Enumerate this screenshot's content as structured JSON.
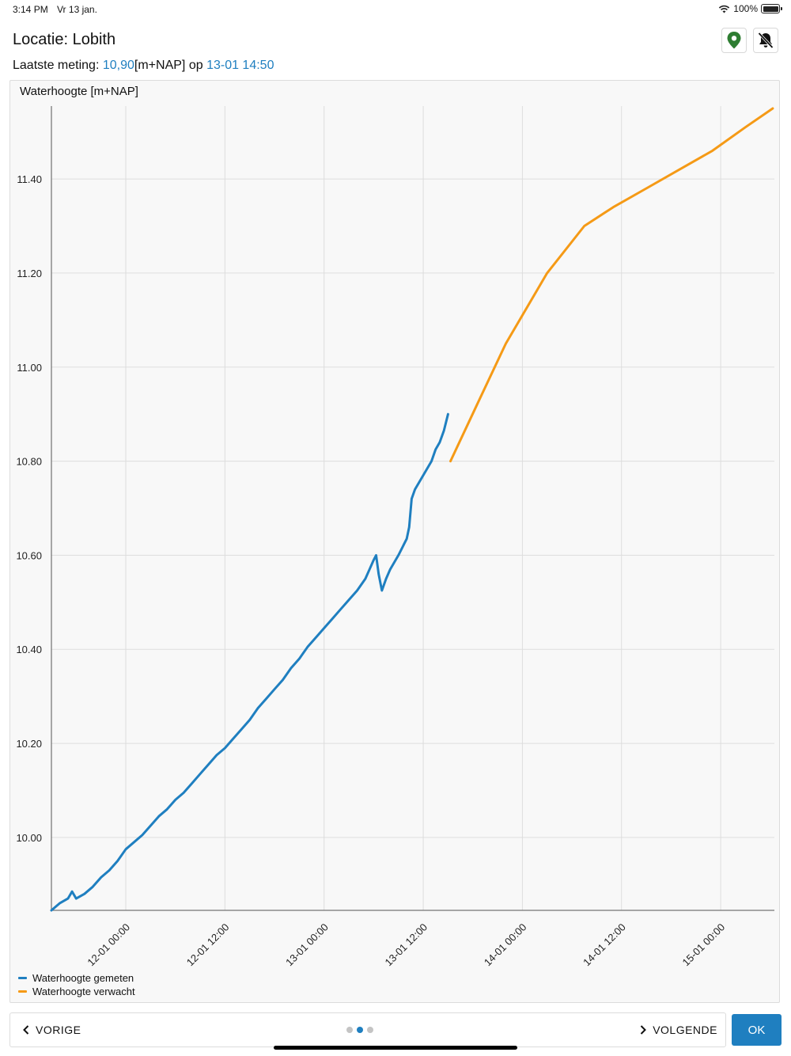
{
  "status_bar": {
    "time": "3:14 PM",
    "date": "Vr 13 jan.",
    "battery": "100%"
  },
  "header": {
    "title": "Locatie: Lobith",
    "last_measurement": {
      "prefix": "Laatste meting:",
      "value": "10,90",
      "unit": "[m+NAP] op",
      "timestamp": "13-01 14:50"
    },
    "location_icon": "map-pin-icon",
    "notification_icon": "bell-off-icon",
    "location_icon_color": "#2e7d32"
  },
  "chart_data": {
    "type": "line",
    "title": "Waterhoogte [m+NAP]",
    "x_unit": "hours since 11-01 21:00",
    "xlim": [
      0,
      87.5
    ],
    "ylim": [
      9.845,
      11.555
    ],
    "yticks": [
      10.0,
      10.2,
      10.4,
      10.6,
      10.8,
      11.0,
      11.2,
      11.4
    ],
    "ytick_labels": [
      "10.00",
      "10.20",
      "10.40",
      "10.60",
      "10.80",
      "11.00",
      "11.20",
      "11.40"
    ],
    "xticks": [
      {
        "x": 9,
        "label": "12-01 00:00"
      },
      {
        "x": 21,
        "label": "12-01 12:00"
      },
      {
        "x": 33,
        "label": "13-01 00:00"
      },
      {
        "x": 45,
        "label": "13-01 12:00"
      },
      {
        "x": 57,
        "label": "14-01 00:00"
      },
      {
        "x": 69,
        "label": "14-01 12:00"
      },
      {
        "x": 81,
        "label": "15-01 00:00"
      }
    ],
    "grid": true,
    "legend_position": "bottom-left",
    "series": [
      {
        "name": "Waterhoogte gemeten",
        "color": "#1f7fc0",
        "points": [
          [
            0,
            9.845
          ],
          [
            1,
            9.86
          ],
          [
            2,
            9.87
          ],
          [
            2.5,
            9.885
          ],
          [
            3,
            9.87
          ],
          [
            4,
            9.88
          ],
          [
            5,
            9.895
          ],
          [
            6,
            9.915
          ],
          [
            7,
            9.93
          ],
          [
            8,
            9.95
          ],
          [
            9,
            9.975
          ],
          [
            10,
            9.99
          ],
          [
            11,
            10.005
          ],
          [
            12,
            10.025
          ],
          [
            13,
            10.045
          ],
          [
            14,
            10.06
          ],
          [
            15,
            10.08
          ],
          [
            16,
            10.095
          ],
          [
            17,
            10.115
          ],
          [
            18,
            10.135
          ],
          [
            19,
            10.155
          ],
          [
            20,
            10.175
          ],
          [
            21,
            10.19
          ],
          [
            22,
            10.21
          ],
          [
            23,
            10.23
          ],
          [
            24,
            10.25
          ],
          [
            25,
            10.275
          ],
          [
            26,
            10.295
          ],
          [
            27,
            10.315
          ],
          [
            28,
            10.335
          ],
          [
            29,
            10.36
          ],
          [
            30,
            10.38
          ],
          [
            31,
            10.405
          ],
          [
            32,
            10.425
          ],
          [
            33,
            10.445
          ],
          [
            34,
            10.465
          ],
          [
            35,
            10.485
          ],
          [
            36,
            10.505
          ],
          [
            37,
            10.525
          ],
          [
            38,
            10.55
          ],
          [
            38.5,
            10.57
          ],
          [
            39,
            10.59
          ],
          [
            39.3,
            10.6
          ],
          [
            39.6,
            10.56
          ],
          [
            40,
            10.525
          ],
          [
            40.5,
            10.55
          ],
          [
            41,
            10.57
          ],
          [
            42,
            10.6
          ],
          [
            43,
            10.635
          ],
          [
            43.3,
            10.66
          ],
          [
            43.6,
            10.72
          ],
          [
            44,
            10.74
          ],
          [
            45,
            10.77
          ],
          [
            46,
            10.8
          ],
          [
            46.5,
            10.825
          ],
          [
            47,
            10.84
          ],
          [
            47.5,
            10.865
          ],
          [
            48,
            10.9
          ]
        ]
      },
      {
        "name": "Waterhoogte verwacht",
        "color": "#f59a16",
        "points": [
          [
            48.3,
            10.8
          ],
          [
            51.5,
            10.92
          ],
          [
            55,
            11.05
          ],
          [
            60,
            11.2
          ],
          [
            64.5,
            11.3
          ],
          [
            68,
            11.34
          ],
          [
            72,
            11.38
          ],
          [
            76,
            11.42
          ],
          [
            80,
            11.46
          ],
          [
            84,
            11.51
          ],
          [
            87.3,
            11.55
          ]
        ]
      }
    ]
  },
  "footer": {
    "prev_label": "VORIGE",
    "next_label": "VOLGENDE",
    "ok_label": "OK",
    "page_count": 3,
    "active_page": 2
  }
}
